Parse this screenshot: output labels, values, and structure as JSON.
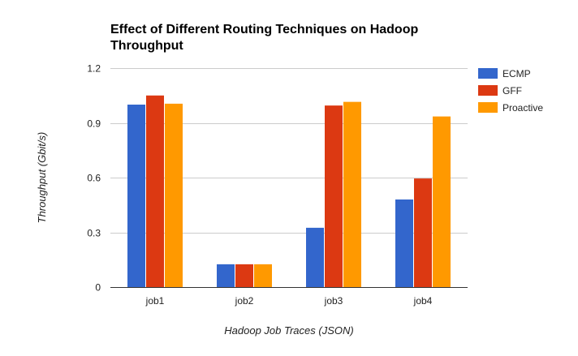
{
  "chart_data": {
    "type": "bar",
    "title": "Effect of Different Routing Techniques on Hadoop Throughput",
    "title_lines": [
      "Effect of Different Routing Techniques on Hadoop",
      "Throughput"
    ],
    "xlabel": "Hadoop Job Traces (JSON)",
    "ylabel": "Throughput (Gbit/s)",
    "categories": [
      "job1",
      "job2",
      "job3",
      "job4"
    ],
    "ylim": [
      0,
      1.2
    ],
    "yticks": [
      0,
      0.3,
      0.6,
      0.9,
      1.2
    ],
    "ytick_labels": [
      "0",
      "0.3",
      "0.6",
      "0.9",
      "1.2"
    ],
    "grid": true,
    "legend_position": "right",
    "series": [
      {
        "name": "ECMP",
        "color": "#3366cc",
        "values": [
          1.0,
          0.125,
          0.325,
          0.48
        ]
      },
      {
        "name": "GFF",
        "color": "#dc3912",
        "values": [
          1.05,
          0.125,
          0.995,
          0.595
        ]
      },
      {
        "name": "Proactive",
        "color": "#ff9900",
        "values": [
          1.005,
          0.125,
          1.015,
          0.935
        ]
      }
    ]
  }
}
